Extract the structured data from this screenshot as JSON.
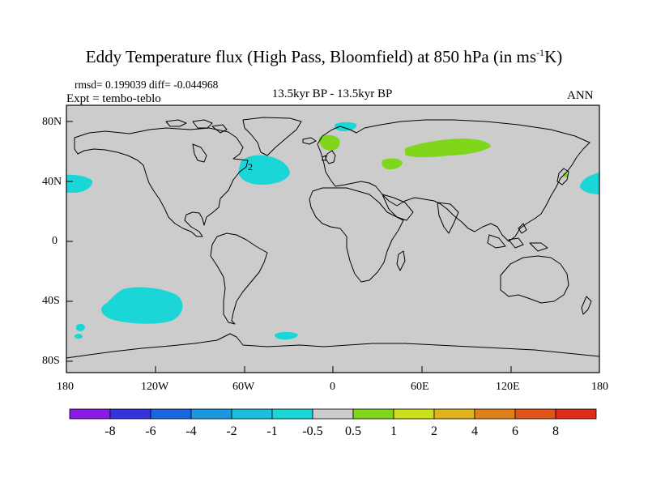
{
  "title": {
    "main": "Eddy Temperature flux (High Pass, Bloomfield) at 850 hPa (in ms",
    "sup": "-1",
    "end": "K)"
  },
  "stats": "rmsd= 0.199039 diff= -0.044968",
  "experiment": "Expt = tembo-teblo",
  "period": "13.5kyr BP - 13.5kyr BP",
  "season": "ANN",
  "colors": {
    "background_field": "#cccccc",
    "positive_0_5_to_1": "#7fd61a",
    "negative_minus1_to_minus0_5": "#1ad6d6"
  },
  "axes": {
    "y_ticks": [
      "80N",
      "40N",
      "0",
      "40S",
      "80S"
    ],
    "x_ticks": [
      "180",
      "120W",
      "60W",
      "0",
      "60E",
      "120E",
      "180"
    ]
  },
  "contour_label": "2",
  "colorbar": {
    "labels": [
      "-8",
      "-6",
      "-4",
      "-2",
      "-1",
      "-0.5",
      "0.5",
      "1",
      "2",
      "4",
      "6",
      "8"
    ],
    "colors": [
      "#8c1ae6",
      "#3333e0",
      "#1a66e0",
      "#1a99e0",
      "#1abfe0",
      "#1ad6d6",
      "#cccccc",
      "#7fd61a",
      "#cce01a",
      "#e0b31a",
      "#e0801a",
      "#e0531a",
      "#e02a1a"
    ]
  }
}
